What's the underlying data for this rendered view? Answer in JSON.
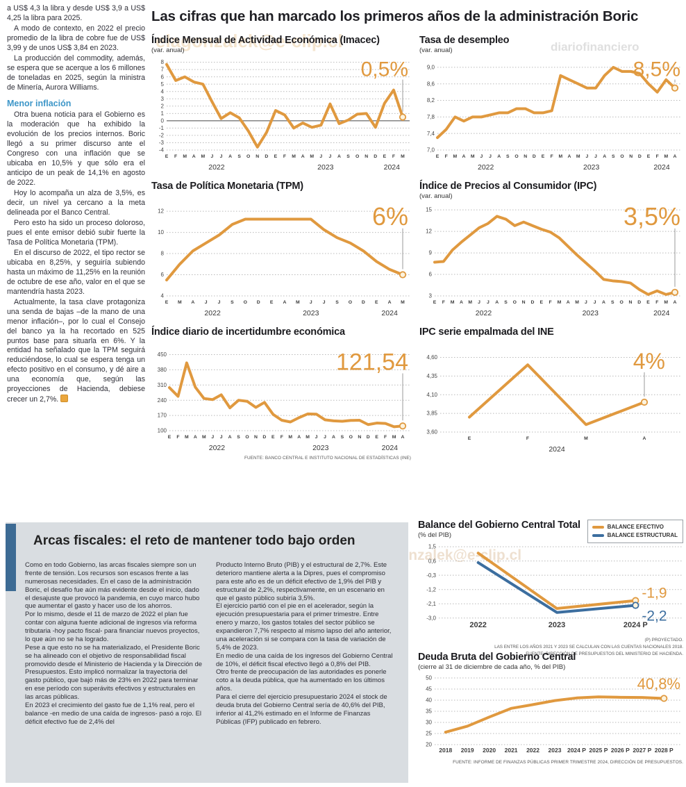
{
  "watermarks": [
    "elagonzalek@e-clip.cl",
    "diariofinanciero",
    "diariofinanciero#4agonzalek@e-clip.cl"
  ],
  "header": {
    "title": "Las cifras que han marcado los primeros años de la administración Boric"
  },
  "left_article": {
    "paragraphs": [
      "a US$ 4,3 la libra y desde US$ 3,9 a US$ 4,25 la libra para 2025.",
      "A modo de contexto, en 2022 el precio promedio de la libra de cobre fue de US$ 3,99 y de unos US$ 3,84 en 2023.",
      "La producción del commodity, además, se espera que se acerque a los 6 millones de toneladas en 2025, según la ministra de Minería, Aurora Williams."
    ],
    "subhead": "Menor inflación",
    "paragraphs2": [
      "Otra buena noticia para el Gobierno es la moderación que ha exhibido la evolución de los precios internos. Boric llegó a su primer discurso ante el Congreso con una inflación que se ubicaba en 10,5% y que sólo era el anticipo de un peak de 14,1% en agosto de 2022.",
      "Hoy lo acompaña un alza de 3,5%, es decir, un nivel ya cercano a la meta delineada por el Banco Central.",
      "Pero esto ha sido un proceso doloroso, pues el ente emisor debió subir fuerte la Tasa de Política Monetaria (TPM).",
      "En el discurso de 2022, el tipo rector se ubicaba en 8,25%, y seguiría subiendo hasta un máximo de 11,25% en la reunión de octubre de ese año, valor en el que se mantendría hasta 2023.",
      "Actualmente, la tasa clave protagoniza una senda de bajas –de la mano de una menor inflación–, por lo cual el Consejo del banco ya la ha recortado en 525 puntos base para situarla en 6%. Y la entidad ha señalado que la TPM seguirá reduciéndose, lo cual se espera tenga un efecto positivo en el consumo, y dé aire a una economía que, según las proyecciones de Hacienda, debiese crecer un 2,7%."
    ]
  },
  "fiscal_box": {
    "title": "Arcas fiscales: el reto de mantener todo bajo orden",
    "col1": [
      "Como en todo Gobierno, las arcas fiscales siempre son un frente de tensión. Los recursos son escasos frente a las numerosas necesidades. En el caso de la administración Boric, el desafío fue aún más evidente desde el inicio, dado el desajuste que provocó la pandemia, en cuyo marco hubo que aumentar el gasto y hacer uso de los ahorros.",
      "Por lo mismo, desde el 11 de marzo de 2022 el plan fue contar con alguna fuente adicional de ingresos vía reforma tributaria -hoy pacto fiscal- para financiar nuevos proyectos, lo que aún no se ha logrado.",
      "Pese a que esto no se ha materializado, el Presidente Boric se ha alineado con el objetivo de responsabilidad fiscal promovido desde el Ministerio de Hacienda y la Dirección de Presupuestos. Esto implicó normalizar la trayectoria del gasto público, que bajó más de 23% en 2022 para terminar en ese período con superávits efectivos y estructurales en las arcas públicas.",
      "En 2023 el crecimiento del gasto fue de 1,1% real, pero el balance -en medio de una caída de ingresos-  pasó a rojo. El déficit efectivo fue de 2,4% del"
    ],
    "col2": [
      "Producto Interno Bruto (PIB) y el estructural de 2,7%. Este deterioro mantiene alerta a la Dipres, pues el compromiso para este año es de un déficit efectivo de 1,9% del PIB y estructural de 2,2%, respectivamente, en un escenario en que el gasto público subiría 3,5%.",
      "El ejercicio partió con el pie en el acelerador, según la ejecución presupuestaria para el primer trimestre. Entre enero y marzo, los gastos totales del sector público se expandieron 7,7% respecto al mismo lapso del año anterior, una aceleración si se compara con la tasa de variación de 5,4% de 2023.",
      "En medio de una caída de los ingresos del Gobierno Central de 10%, el déficit fiscal efectivo llegó a 0,8% del PIB.",
      "Otro frente de preocupación de las autoridades es ponerle coto a la deuda pública, que ha aumentado en los últimos años.",
      "Para el cierre del ejercicio presupuestario 2024 el stock de deuda bruta del Gobierno Central sería de 40,6% del PIB, inferior al 41,2% estimado en el Informe de Finanzas Públicas (IFP) publicado en febrero."
    ]
  },
  "colors": {
    "line_orange": "#E0993F",
    "line_blue": "#3C6E9F",
    "subhead_blue": "#3D96C8",
    "panel_gray": "#D9DDE1",
    "accent_bar_blue": "#3D6B94"
  },
  "chart_data": [
    {
      "type": "line",
      "title": "Índice Mensual de Actividad Económica (Imacec)",
      "subtitle": "(var. anual)",
      "big_value": "0,5%",
      "ylim": [
        -4,
        8.15
      ],
      "yticks": [
        {
          "v": 8,
          "l": "8"
        },
        {
          "v": 7,
          "l": "7"
        },
        {
          "v": 6,
          "l": "6"
        },
        {
          "v": 5,
          "l": "5"
        },
        {
          "v": 4,
          "l": "4"
        },
        {
          "v": 3,
          "l": "3"
        },
        {
          "v": 2,
          "l": "2"
        },
        {
          "v": 1,
          "l": "1"
        },
        {
          "v": 0,
          "l": "0"
        },
        {
          "v": -1,
          "l": "-1"
        },
        {
          "v": -2,
          "l": "-2"
        },
        {
          "v": -3,
          "l": "-3"
        },
        {
          "v": -4,
          "l": "-4"
        }
      ],
      "zero_line": 0,
      "categories": [
        "E",
        "F",
        "M",
        "A",
        "M",
        "J",
        "J",
        "A",
        "S",
        "O",
        "N",
        "D",
        "E",
        "F",
        "M",
        "A",
        "M",
        "J",
        "J",
        "A",
        "S",
        "O",
        "N",
        "D",
        "E",
        "F",
        "M"
      ],
      "years": [
        {
          "label": "2022",
          "i": 5.5
        },
        {
          "label": "2023",
          "i": 17.5
        },
        {
          "label": "2024",
          "i": 24.8
        }
      ],
      "connector": true,
      "series": [
        {
          "name": "Imacec",
          "color": "#E0993F",
          "values": [
            7.7,
            5.5,
            6.0,
            5.3,
            5.0,
            2.6,
            0.3,
            1.1,
            0.4,
            -1.4,
            -3.6,
            -1.6,
            1.4,
            0.8,
            -1.0,
            -0.3,
            -0.9,
            -0.6,
            2.3,
            -0.4,
            0.1,
            0.9,
            1.0,
            -0.9,
            2.4,
            4.2,
            0.5
          ]
        }
      ]
    },
    {
      "type": "line",
      "title": "Tasa de desempleo",
      "subtitle": "(var. anual)",
      "big_value": "8,5%",
      "ylim": [
        7.0,
        9.15
      ],
      "yticks": [
        {
          "v": 9.0,
          "l": "9,0"
        },
        {
          "v": 8.6,
          "l": "8,6"
        },
        {
          "v": 8.2,
          "l": "8,2"
        },
        {
          "v": 7.8,
          "l": "7,8"
        },
        {
          "v": 7.4,
          "l": "7,4"
        },
        {
          "v": 7.0,
          "l": "7,0"
        }
      ],
      "categories": [
        "E",
        "F",
        "M",
        "A",
        "M",
        "J",
        "J",
        "A",
        "S",
        "O",
        "N",
        "D",
        "E",
        "F",
        "M",
        "A",
        "M",
        "J",
        "J",
        "A",
        "S",
        "O",
        "N",
        "D",
        "E",
        "F",
        "M",
        "A"
      ],
      "years": [
        {
          "label": "2022",
          "i": 5.5
        },
        {
          "label": "2023",
          "i": 17.5
        },
        {
          "label": "2024",
          "i": 25.5
        }
      ],
      "connector": true,
      "series": [
        {
          "name": "Tasa de desempleo",
          "color": "#E0993F",
          "values": [
            7.3,
            7.5,
            7.8,
            7.7,
            7.8,
            7.8,
            7.85,
            7.9,
            7.9,
            8.0,
            8.0,
            7.9,
            7.9,
            7.95,
            8.8,
            8.7,
            8.6,
            8.5,
            8.5,
            8.8,
            9.0,
            8.9,
            8.9,
            8.85,
            8.6,
            8.4,
            8.7,
            8.5
          ]
        }
      ]
    },
    {
      "type": "line",
      "title": "Tasa de Política Monetaria (TPM)",
      "subtitle": "",
      "big_value": "6%",
      "ylim": [
        4,
        12.4
      ],
      "yticks": [
        {
          "v": 12,
          "l": "12"
        },
        {
          "v": 10,
          "l": "10"
        },
        {
          "v": 8,
          "l": "8"
        },
        {
          "v": 6,
          "l": "6"
        },
        {
          "v": 4,
          "l": "4"
        }
      ],
      "categories": [
        "E",
        "M",
        "A",
        "J",
        "J",
        "S",
        "O",
        "D",
        "E",
        "A",
        "M",
        "J",
        "J",
        "S",
        "O",
        "D",
        "E",
        "A",
        "M"
      ],
      "years": [
        {
          "label": "2022",
          "i": 3.5
        },
        {
          "label": "2023",
          "i": 11
        },
        {
          "label": "2024",
          "i": 17
        }
      ],
      "connector": true,
      "series": [
        {
          "name": "TPM",
          "color": "#E0993F",
          "values": [
            5.5,
            7.0,
            8.25,
            9.0,
            9.75,
            10.75,
            11.25,
            11.25,
            11.25,
            11.25,
            11.25,
            11.25,
            10.25,
            9.5,
            9.0,
            8.25,
            7.25,
            6.5,
            6.0
          ]
        }
      ]
    },
    {
      "type": "line",
      "title": "Índice de Precios al Consumidor (IPC)",
      "subtitle": "(var. anual)",
      "big_value": "3,5%",
      "ylim": [
        3,
        15.4
      ],
      "yticks": [
        {
          "v": 15,
          "l": "15"
        },
        {
          "v": 12,
          "l": "12"
        },
        {
          "v": 9,
          "l": "9"
        },
        {
          "v": 6,
          "l": "6"
        },
        {
          "v": 3,
          "l": "3"
        }
      ],
      "categories": [
        "E",
        "F",
        "M",
        "A",
        "M",
        "J",
        "J",
        "A",
        "S",
        "O",
        "N",
        "D",
        "E",
        "F",
        "M",
        "A",
        "M",
        "J",
        "J",
        "A",
        "S",
        "O",
        "N",
        "D",
        "E",
        "F",
        "M",
        "A"
      ],
      "years": [
        {
          "label": "2022",
          "i": 5.5
        },
        {
          "label": "2023",
          "i": 17.5
        },
        {
          "label": "2024",
          "i": 25.5
        }
      ],
      "connector": true,
      "series": [
        {
          "name": "IPC",
          "color": "#E0993F",
          "values": [
            7.7,
            7.8,
            9.4,
            10.5,
            11.5,
            12.5,
            13.1,
            14.1,
            13.7,
            12.8,
            13.3,
            12.8,
            12.3,
            11.9,
            11.1,
            9.9,
            8.7,
            7.6,
            6.5,
            5.3,
            5.1,
            5.0,
            4.8,
            3.9,
            3.2,
            3.7,
            3.2,
            3.5
          ]
        }
      ]
    },
    {
      "type": "line",
      "title": "Índice diario de incertidumbre económica",
      "subtitle": "",
      "big_value": "121,54",
      "ylim": [
        100,
        458
      ],
      "yticks": [
        {
          "v": 450,
          "l": "450"
        },
        {
          "v": 380,
          "l": "380"
        },
        {
          "v": 310,
          "l": "310"
        },
        {
          "v": 240,
          "l": "240"
        },
        {
          "v": 170,
          "l": "170"
        },
        {
          "v": 100,
          "l": "100"
        }
      ],
      "categories": [
        "E",
        "F",
        "M",
        "A",
        "M",
        "J",
        "J",
        "A",
        "S",
        "O",
        "N",
        "D",
        "E",
        "F",
        "M",
        "A",
        "M",
        "J",
        "J",
        "A",
        "S",
        "O",
        "N",
        "D",
        "E",
        "F",
        "M",
        "A"
      ],
      "years": [
        {
          "label": "2022",
          "i": 5.5
        },
        {
          "label": "2023",
          "i": 17.5
        },
        {
          "label": "2024",
          "i": 25.5
        }
      ],
      "connector": true,
      "source": "FUENTE: BANCO CENTRAL E INSTITUTO NACIONAL DE ESTADÍSTICAS (INE)",
      "series": [
        {
          "name": "Incertidumbre económica",
          "color": "#E0993F",
          "values": [
            298,
            258,
            412,
            300,
            248,
            243,
            265,
            205,
            240,
            235,
            207,
            230,
            175,
            148,
            140,
            160,
            177,
            176,
            150,
            145,
            143,
            147,
            148,
            128,
            135,
            133,
            118,
            121.54
          ]
        }
      ]
    },
    {
      "type": "line",
      "title": "IPC serie empalmada del INE",
      "subtitle": "",
      "big_value": "4%",
      "ylim": [
        3.6,
        4.66
      ],
      "yticks": [
        {
          "v": 4.6,
          "l": "4,60"
        },
        {
          "v": 4.35,
          "l": "4,35"
        },
        {
          "v": 4.1,
          "l": "4,10"
        },
        {
          "v": 3.85,
          "l": "3,85"
        },
        {
          "v": 3.6,
          "l": "3,60"
        }
      ],
      "categories": [
        "E",
        "F",
        "M",
        "A"
      ],
      "slot_centers": true,
      "years": [
        {
          "label": "2024",
          "i": 1.5
        }
      ],
      "connector": true,
      "series": [
        {
          "name": "IPC serie empalmada",
          "color": "#E0993F",
          "values": [
            3.8,
            4.5,
            3.7,
            4.0
          ]
        }
      ]
    },
    {
      "type": "line",
      "title": "Balance del Gobierno Central Total",
      "subtitle": "(% del PIB)",
      "ylim": [
        -3.1,
        1.55
      ],
      "yticks": [
        {
          "v": 1.5,
          "l": "1,5"
        },
        {
          "v": 0.6,
          "l": "0,6"
        },
        {
          "v": -0.3,
          "l": "-0,3"
        },
        {
          "v": -1.2,
          "l": "-1,2"
        },
        {
          "v": -2.1,
          "l": "-2,1"
        },
        {
          "v": -3.0,
          "l": "-3,0"
        }
      ],
      "categories": [
        "2022",
        "2023",
        "2024 P"
      ],
      "slot_centers": true,
      "legend": [
        {
          "label": "BALANCE EFECTIVO",
          "color": "#E0993F"
        },
        {
          "label": "BALANCE ESTRUCTURAL",
          "color": "#3C6E9F"
        }
      ],
      "notes": [
        "(P) PROYECTADO.",
        "LAS ENTRE LOS AÑOS 2021 Y 2023 SE CALCULAN  CON LAS CUENTAS NACIONALES 2018.",
        "FUENTE: DIRECCIÓN DE PRESUPUESTOS DEL MINISTERIO DE HACIENDA."
      ],
      "series": [
        {
          "name": "Balance efectivo",
          "color": "#E0993F",
          "values": [
            1.1,
            -2.4,
            -1.9
          ],
          "end_label": "-1,9",
          "end_label_dy": -4
        },
        {
          "name": "Balance estructural",
          "color": "#3C6E9F",
          "values": [
            0.5,
            -2.65,
            -2.2
          ],
          "end_label": "-2,2",
          "end_label_dy": 22
        }
      ]
    },
    {
      "type": "line",
      "title": "Deuda Bruta del Gobierno Central",
      "subtitle": "(cierre al 31 de diciembre de cada año, % del PIB)",
      "big_value": "40,8%",
      "ylim": [
        20,
        50
      ],
      "yticks": [
        {
          "v": 50,
          "l": "50"
        },
        {
          "v": 45,
          "l": "45"
        },
        {
          "v": 40,
          "l": "40"
        },
        {
          "v": 35,
          "l": "35"
        },
        {
          "v": 30,
          "l": "30"
        },
        {
          "v": 25,
          "l": "25"
        },
        {
          "v": 20,
          "l": "20"
        }
      ],
      "categories": [
        "2018",
        "2019",
        "2020",
        "2021",
        "2022",
        "2023",
        "2024 P",
        "2025 P",
        "2026 P",
        "2027 P",
        "2028 P"
      ],
      "slot_centers": true,
      "connector": false,
      "source": "FUENTE: INFORME DE FINANZAS PÚBLICAS PRIMER TRIMESTRE 2024, DIRECCIÓN DE PRESUPUESTOS.",
      "series": [
        {
          "name": "Deuda bruta",
          "color": "#E0993F",
          "values": [
            25.6,
            28.3,
            32.4,
            36.3,
            38.0,
            39.8,
            41.0,
            41.5,
            41.3,
            41.2,
            40.8
          ]
        }
      ]
    }
  ]
}
